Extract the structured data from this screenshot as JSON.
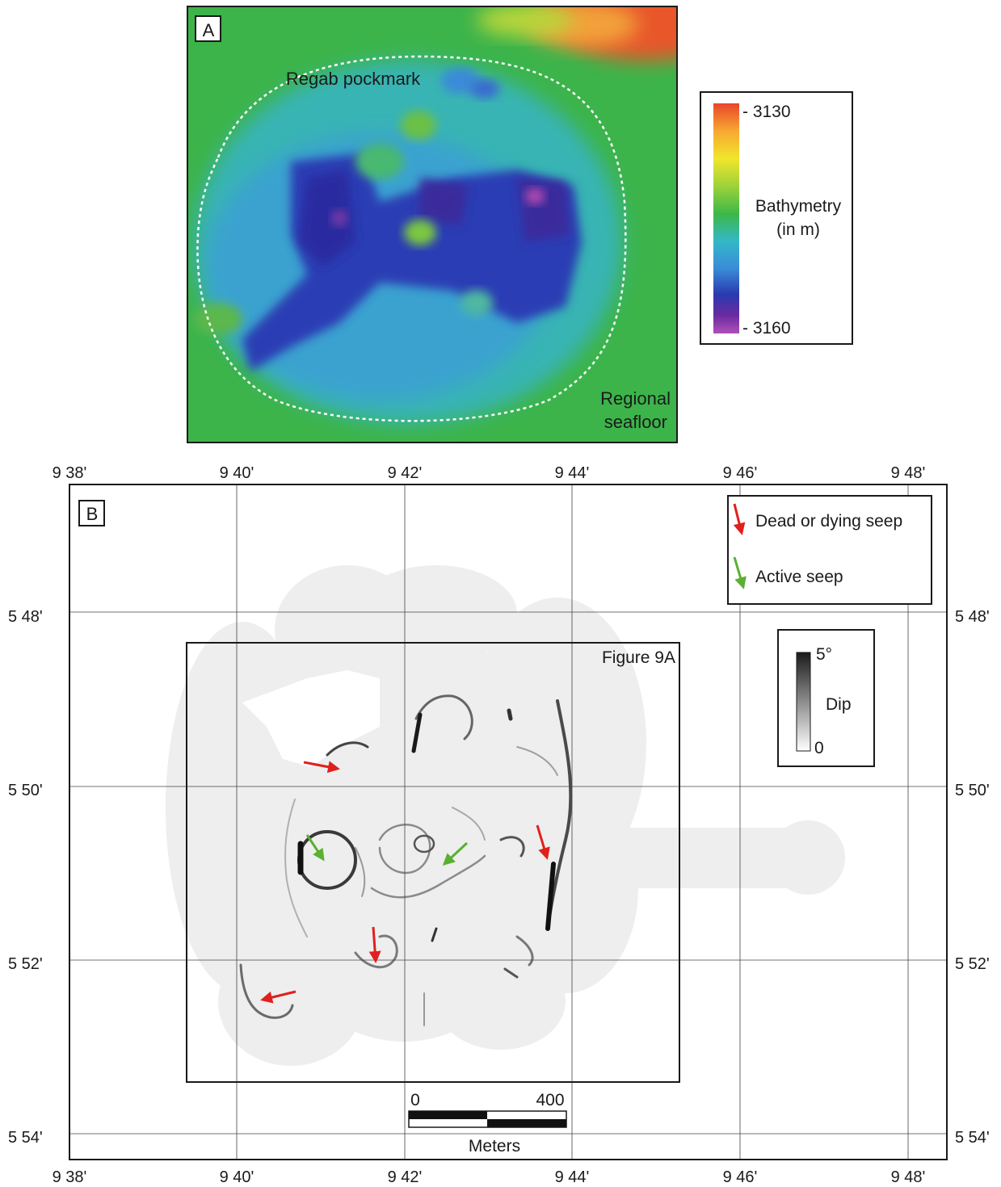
{
  "panel_a": {
    "label": "A",
    "pockmark_label": "Regab pockmark",
    "seafloor_label_line1": "Regional",
    "seafloor_label_line2": "seafloor",
    "colorbar": {
      "title_line1": "Bathymetry",
      "title_line2": "(in m)",
      "top_label": "- 3130",
      "bottom_label": "- 3160",
      "top_value": 3130,
      "bottom_value": 3160,
      "colors": [
        "#e8452a",
        "#f7a832",
        "#f0e62b",
        "#9dd23a",
        "#3cb848",
        "#34b8c8",
        "#3a8ad8",
        "#2a3ab0",
        "#6a2aa0",
        "#b050b8"
      ]
    }
  },
  "panel_b": {
    "label": "B",
    "top_ticks": [
      "9 38'",
      "9 40'",
      "9 42'",
      "9 44'",
      "9 46'",
      "9 48'"
    ],
    "bottom_ticks": [
      "9 38'",
      "9 40'",
      "9 42'",
      "9 44'",
      "9 46'",
      "9 48'"
    ],
    "left_ticks": [
      "5 48'",
      "5 50'",
      "5 52'",
      "5 54'"
    ],
    "right_ticks": [
      "5 48'",
      "5 50'",
      "5 52'",
      "5 54'"
    ],
    "inset_label": "Figure 9A",
    "legend": {
      "dead_label": "Dead or dying seep",
      "active_label": "Active seep",
      "dead_color": "#e0201c",
      "active_color": "#5ab030"
    },
    "dip_scale": {
      "title": "Dip",
      "top_label": "5°",
      "bottom_label": "0"
    },
    "scale_bar": {
      "left_label": "0",
      "right_label": "400",
      "unit_label": "Meters"
    }
  }
}
